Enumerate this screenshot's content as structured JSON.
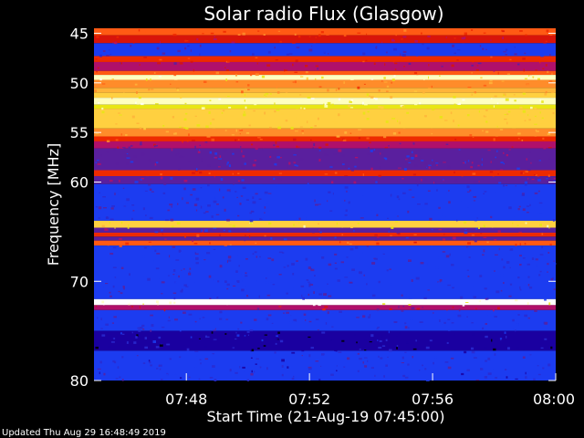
{
  "chart_data": {
    "type": "heatmap",
    "title": "Solar radio Flux (Glasgow)",
    "xlabel": "Start Time (21-Aug-19 07:45:00)",
    "ylabel": "Frequency [MHz]",
    "xlim": [
      "07:45",
      "08:00"
    ],
    "ylim": [
      80,
      44.5
    ],
    "y_inverted": true,
    "x_ticks": [
      "07:48",
      "07:52",
      "07:56",
      "08:00"
    ],
    "y_ticks": [
      45,
      50,
      55,
      60,
      70,
      80
    ],
    "colorscale": [
      "#000000",
      "#1a00a0",
      "#2a2ad0",
      "#1c3cf0",
      "#5a1f9e",
      "#b0106a",
      "#d8140a",
      "#ee2a00",
      "#ff5a14",
      "#ff8c2a",
      "#ffb43a",
      "#ffd040",
      "#e8e614",
      "#ffffc0",
      "#ffffff"
    ],
    "intensity_levels_note": "relative intensity 0-1 mapped to colorscale",
    "bands": [
      {
        "f1": 44.5,
        "f2": 45.2,
        "level": 0.55
      },
      {
        "f1": 45.2,
        "f2": 46.0,
        "level": 0.42
      },
      {
        "f1": 46.0,
        "f2": 47.3,
        "level": 0.22
      },
      {
        "f1": 47.3,
        "f2": 47.9,
        "level": 0.5
      },
      {
        "f1": 47.9,
        "f2": 48.8,
        "level": 0.36
      },
      {
        "f1": 48.8,
        "f2": 49.2,
        "level": 0.58
      },
      {
        "f1": 49.2,
        "f2": 49.7,
        "level": 0.9
      },
      {
        "f1": 49.7,
        "f2": 50.5,
        "level": 0.62
      },
      {
        "f1": 50.5,
        "f2": 51.0,
        "level": 0.68
      },
      {
        "f1": 51.0,
        "f2": 51.5,
        "level": 0.78
      },
      {
        "f1": 51.5,
        "f2": 52.2,
        "level": 0.92
      },
      {
        "f1": 52.2,
        "f2": 52.6,
        "level": 0.86
      },
      {
        "f1": 52.6,
        "f2": 54.6,
        "level": 0.8
      },
      {
        "f1": 54.6,
        "f2": 55.4,
        "level": 0.66
      },
      {
        "f1": 55.4,
        "f2": 55.9,
        "level": 0.52
      },
      {
        "f1": 55.9,
        "f2": 56.6,
        "level": 0.36
      },
      {
        "f1": 56.6,
        "f2": 58.8,
        "level": 0.28
      },
      {
        "f1": 58.8,
        "f2": 59.4,
        "level": 0.52
      },
      {
        "f1": 59.4,
        "f2": 60.2,
        "level": 0.3
      },
      {
        "f1": 60.2,
        "f2": 63.9,
        "level": 0.22
      },
      {
        "f1": 63.9,
        "f2": 64.6,
        "level": 0.82
      },
      {
        "f1": 64.6,
        "f2": 65.1,
        "level": 0.26
      },
      {
        "f1": 65.1,
        "f2": 65.5,
        "level": 0.5
      },
      {
        "f1": 65.5,
        "f2": 65.9,
        "level": 0.3
      },
      {
        "f1": 65.9,
        "f2": 66.4,
        "level": 0.55
      },
      {
        "f1": 66.4,
        "f2": 71.8,
        "level": 0.2
      },
      {
        "f1": 71.8,
        "f2": 72.4,
        "level": 0.97
      },
      {
        "f1": 72.4,
        "f2": 72.9,
        "level": 0.38
      },
      {
        "f1": 72.9,
        "f2": 75.0,
        "level": 0.2
      },
      {
        "f1": 75.0,
        "f2": 77.0,
        "level": 0.1
      },
      {
        "f1": 77.0,
        "f2": 80.0,
        "level": 0.18
      }
    ],
    "updated_text": "Updated Thu Aug 29 16:48:49 2019"
  }
}
